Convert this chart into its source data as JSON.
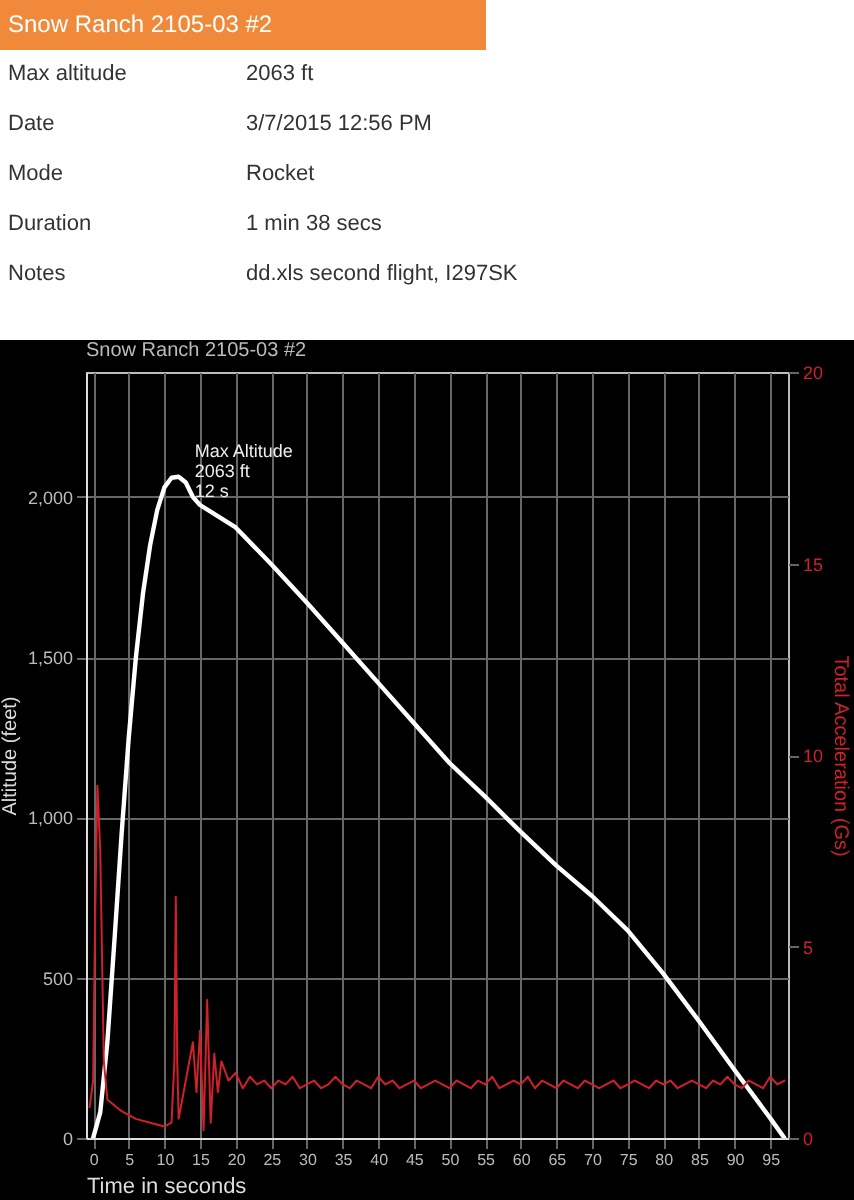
{
  "chart_data": {
    "type": "line",
    "title": "Snow Ranch 2105-03 #2",
    "xlabel": "Time in seconds",
    "ylabel": "Altitude (feet)",
    "y2label": "Total Acceleration (Gs)",
    "annotations": [
      "Max altitude",
      "2063 ft",
      "Date",
      "3/7/2015 12:56 PM",
      "Mode",
      "Rocket",
      "Duration",
      "1 min 38 secs",
      "Notes",
      "dd.xls second flight, I297SK",
      {
        "text": "Max Altitude\n2063 ft\n12  s",
        "x": 12,
        "y": 2063
      }
    ],
    "xlim": [
      -1,
      97.5
    ],
    "xticks": [
      0,
      5,
      10,
      15,
      20,
      25,
      30,
      35,
      40,
      45,
      50,
      55,
      60,
      65,
      70,
      75,
      80,
      85,
      90,
      95
    ],
    "ylim": [
      0,
      2390
    ],
    "yticks": [
      {
        "value": 0,
        "label": "0"
      },
      {
        "value": 500,
        "label": "500"
      },
      {
        "value": 1000,
        "label": "1,000"
      },
      {
        "value": 1500,
        "label": "1,500"
      },
      {
        "value": 2000,
        "label": "2,000"
      }
    ],
    "y2lim": [
      0,
      20
    ],
    "y2ticks": [
      0,
      5,
      10,
      15,
      20
    ],
    "grid": true,
    "line_style": "solid",
    "marker": "none",
    "series": [
      {
        "color": "#ffffff",
        "x": [
          0,
          1,
          2,
          3,
          4,
          5,
          6,
          7,
          8,
          9,
          10,
          11,
          12,
          13,
          14,
          15,
          20,
          25,
          30,
          35,
          40,
          45,
          50,
          55,
          60,
          65,
          70,
          75,
          80,
          85,
          90,
          95,
          97
        ],
        "values": [
          0,
          80,
          300,
          620,
          950,
          1250,
          1500,
          1700,
          1850,
          1960,
          2030,
          2060,
          2063,
          2045,
          2000,
          1975,
          1905,
          1790,
          1670,
          1545,
          1420,
          1295,
          1170,
          1065,
          955,
          850,
          755,
          648,
          513,
          365,
          212,
          62,
          0
        ]
      },
      {
        "color": "#d0202a",
        "axis": "y2",
        "x": [
          -0.5,
          0,
          0.3,
          0.6,
          1,
          1.5,
          2,
          4,
          6,
          8,
          10,
          11,
          11.4,
          11.6,
          11.8,
          12,
          13,
          14,
          14.5,
          15,
          15.5,
          16,
          16.5,
          17,
          17.5,
          18,
          19,
          20,
          21,
          22,
          23,
          24,
          25,
          26,
          27,
          28,
          29,
          30,
          31,
          32,
          33,
          34,
          35,
          36,
          37,
          38,
          39,
          40,
          41,
          42,
          43,
          44,
          45,
          46,
          47,
          48,
          49,
          50,
          51,
          52,
          53,
          54,
          55,
          56,
          57,
          58,
          59,
          60,
          61,
          62,
          63,
          64,
          65,
          66,
          67,
          68,
          69,
          70,
          71,
          72,
          73,
          74,
          75,
          76,
          77,
          78,
          79,
          80,
          81,
          82,
          83,
          84,
          85,
          86,
          87,
          88,
          89,
          90,
          91,
          92,
          93,
          94,
          95,
          96,
          97
        ],
        "values": [
          0.8,
          1.5,
          6,
          9.2,
          7.5,
          2,
          1,
          0.7,
          0.5,
          0.4,
          0.3,
          0.4,
          2,
          6.3,
          2,
          0.5,
          1.5,
          2.5,
          1.2,
          2.8,
          0.2,
          3.6,
          0.4,
          2.2,
          1.2,
          2,
          1.5,
          1.7,
          1.3,
          1.6,
          1.4,
          1.5,
          1.3,
          1.5,
          1.4,
          1.6,
          1.3,
          1.4,
          1.5,
          1.3,
          1.4,
          1.6,
          1.4,
          1.3,
          1.5,
          1.4,
          1.3,
          1.6,
          1.4,
          1.5,
          1.3,
          1.4,
          1.5,
          1.3,
          1.4,
          1.5,
          1.4,
          1.3,
          1.5,
          1.4,
          1.3,
          1.5,
          1.4,
          1.6,
          1.3,
          1.4,
          1.5,
          1.4,
          1.6,
          1.3,
          1.5,
          1.4,
          1.3,
          1.5,
          1.4,
          1.3,
          1.5,
          1.4,
          1.3,
          1.4,
          1.5,
          1.3,
          1.4,
          1.5,
          1.4,
          1.3,
          1.5,
          1.4,
          1.5,
          1.3,
          1.4,
          1.5,
          1.4,
          1.3,
          1.5,
          1.4,
          1.6,
          1.4,
          1.3,
          1.5,
          1.4,
          1.3,
          1.6,
          1.4,
          1.5
        ]
      }
    ]
  }
}
